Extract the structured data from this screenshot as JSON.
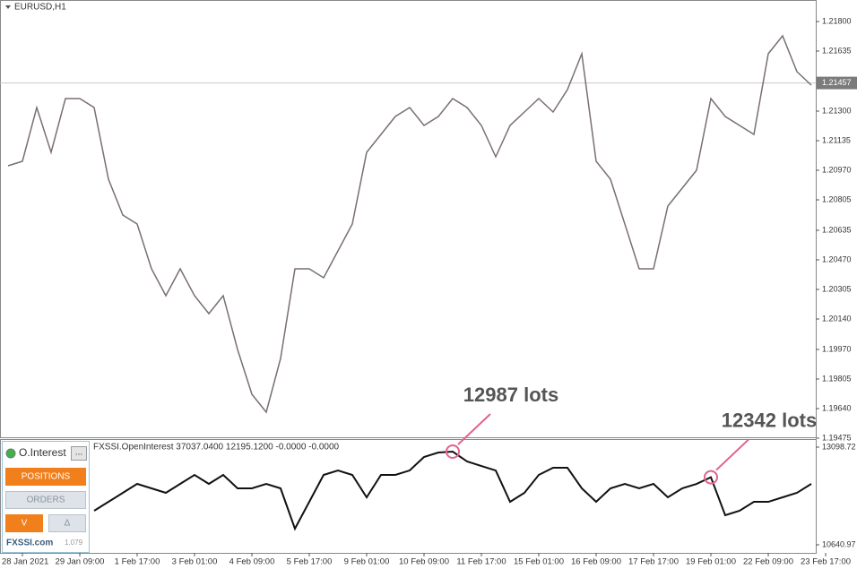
{
  "chart_data": [
    {
      "type": "line",
      "title": "EURUSD,H1",
      "categories": [
        null,
        "28 Jan 2021",
        null,
        null,
        null,
        "29 Jan 09:00",
        null,
        null,
        null,
        "1 Feb 17:00",
        null,
        null,
        null,
        "3 Feb 01:00",
        null,
        null,
        null,
        "4 Feb 09:00",
        null,
        null,
        null,
        "5 Feb 17:00",
        null,
        null,
        null,
        "9 Feb 01:00",
        null,
        null,
        null,
        "10 Feb 09:00",
        null,
        null,
        null,
        "11 Feb 17:00",
        null,
        null,
        null,
        "15 Feb 01:00",
        null,
        null,
        null,
        "16 Feb 09:00",
        null,
        null,
        null,
        "17 Feb 17:00",
        null,
        null,
        null,
        "19 Feb 01:00",
        null,
        null,
        null,
        "22 Feb 09:00",
        null,
        null,
        null,
        "23 Feb 17:00"
      ],
      "series": [
        {
          "name": "EURUSD",
          "color": "#7a6f6f",
          "values": [
            1.20995,
            1.2102,
            1.2132,
            1.2107,
            1.2137,
            1.2137,
            1.2132,
            1.2092,
            1.2072,
            1.2067,
            1.2042,
            1.2027,
            1.2042,
            1.2027,
            1.2017,
            1.2027,
            1.1997,
            1.1972,
            1.1962,
            1.1992,
            1.2042,
            1.2042,
            1.2037,
            1.2052,
            1.2067,
            1.2107,
            1.2117,
            1.2127,
            1.2132,
            1.2122,
            1.2127,
            1.2137,
            1.2132,
            1.2122,
            1.21045,
            1.2122,
            1.21295,
            1.2137,
            1.21295,
            1.2142,
            1.2162,
            1.2102,
            1.2092,
            1.2067,
            1.2042,
            1.2042,
            1.2077,
            1.2087,
            1.2097,
            1.2137,
            1.2127,
            1.2122,
            1.2117,
            1.2162,
            1.2172,
            1.2152,
            1.21445,
            null
          ]
        }
      ],
      "current_price": 1.21457,
      "ylim": [
        1.1948,
        1.2192
      ],
      "yticks": [
        {
          "value": 1.218,
          "label": "1.21800"
        },
        1.21635,
        {
          "value": 1.213,
          "label": "1.21300"
        },
        1.21135,
        {
          "value": 1.2097,
          "label": "1.20970"
        },
        1.20805,
        1.20635,
        {
          "value": 1.2047,
          "label": "1.20470"
        },
        1.20305,
        {
          "value": 1.2014,
          "label": "1.20140"
        },
        {
          "value": 1.1997,
          "label": "1.19970"
        },
        1.19805,
        {
          "value": 1.1964,
          "label": "1.19640"
        },
        1.19475
      ]
    },
    {
      "type": "line",
      "title": "FXSSI.OpenInterest 37037.0400 12195.1200 -0.0000 -0.0000",
      "series": [
        {
          "name": "OpenInterest",
          "color": "#111111",
          "values": [
            null,
            null,
            null,
            null,
            null,
            null,
            11498,
            11723,
            11949,
            12174,
            12062,
            11949,
            12174,
            12400,
            12174,
            12400,
            12062,
            12062,
            12174,
            12062,
            11047,
            11723,
            12400,
            12512,
            12400,
            11836,
            12400,
            12400,
            12512,
            12851,
            12964,
            12987,
            12738,
            12625,
            12512,
            11723,
            11949,
            12400,
            12580,
            12580,
            12062,
            11723,
            12062,
            12174,
            12062,
            12174,
            11836,
            12062,
            12174,
            12342,
            11385,
            11498,
            11723,
            11723,
            11836,
            11949,
            12174,
            null
          ],
          "value_labels": [
            null,
            null,
            null,
            null,
            null,
            null,
            null,
            null,
            null,
            null,
            null,
            null,
            null,
            null,
            null,
            null,
            null,
            null,
            null,
            null,
            null,
            null,
            null,
            null,
            null,
            null,
            null,
            null,
            null,
            null,
            null,
            "12987 lots",
            null,
            null,
            null,
            null,
            null,
            null,
            null,
            null,
            null,
            null,
            null,
            null,
            null,
            null,
            null,
            null,
            null,
            "12342 lots",
            null,
            null,
            null,
            null,
            null,
            null,
            null,
            null
          ]
        }
      ],
      "ylim": [
        10438,
        13302
      ],
      "yticks": [
        13098.72,
        10640.97
      ]
    }
  ],
  "panel": {
    "title": "O.Interest",
    "menu": "...",
    "positions": "POSITIONS",
    "orders": "ORDERS",
    "down": "V",
    "up": "Δ",
    "brand": "FXSSI.com",
    "version": "1.079"
  }
}
